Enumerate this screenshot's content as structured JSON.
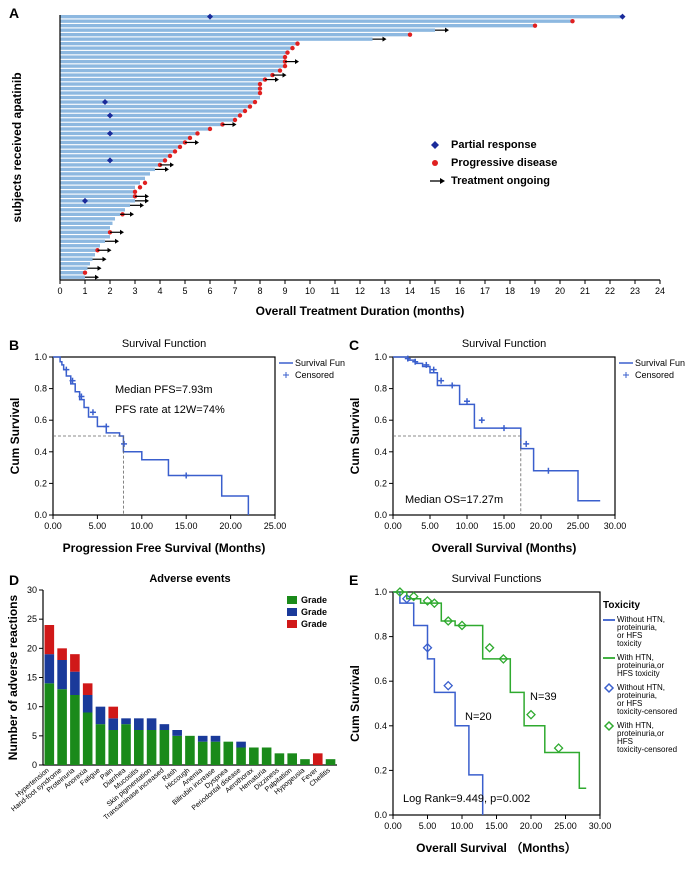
{
  "figure_width": 685,
  "figure_height": 879,
  "panelA": {
    "label": "A",
    "x_axis_title": "Overall Treatment Duration (months)",
    "y_axis_title": "subjects received apatinib",
    "xlim": [
      0,
      24
    ],
    "xtick_step": 1,
    "bar_color": "#8db8e0",
    "durations": [
      22.5,
      20.5,
      19,
      15,
      14,
      12.5,
      9.5,
      9.3,
      9.1,
      9,
      9,
      9,
      8.8,
      8.5,
      8.2,
      8,
      8,
      8,
      8,
      7.8,
      7.6,
      7.4,
      7.2,
      7,
      6.5,
      6,
      5.5,
      5.2,
      5,
      4.8,
      4.6,
      4.4,
      4.2,
      4,
      3.8,
      3.6,
      3.4,
      3.2,
      3,
      3,
      3,
      3,
      2.8,
      2.6,
      2.4,
      2.2,
      2.1,
      2,
      2,
      2,
      1.8,
      1.6,
      1.5,
      1.4,
      1.3,
      1.2,
      1.1,
      1,
      1
    ],
    "pr_points": [
      [
        22.5,
        0
      ],
      [
        6,
        0
      ],
      [
        1.8,
        19
      ],
      [
        2,
        22
      ],
      [
        2,
        26
      ],
      [
        2,
        32
      ],
      [
        1,
        41
      ]
    ],
    "pd_points": [
      [
        20.5,
        1
      ],
      [
        19,
        2
      ],
      [
        14,
        4
      ],
      [
        9.5,
        6
      ],
      [
        9.3,
        7
      ],
      [
        9.1,
        8
      ],
      [
        9,
        9
      ],
      [
        9,
        10
      ],
      [
        9,
        11
      ],
      [
        8.8,
        12
      ],
      [
        8.5,
        13
      ],
      [
        8.2,
        14
      ],
      [
        8,
        15
      ],
      [
        8,
        16
      ],
      [
        8,
        17
      ],
      [
        7.8,
        19
      ],
      [
        7.6,
        20
      ],
      [
        7.4,
        21
      ],
      [
        7.2,
        22
      ],
      [
        7,
        23
      ],
      [
        6.5,
        24
      ],
      [
        6,
        25
      ],
      [
        5.5,
        26
      ],
      [
        5.2,
        27
      ],
      [
        5,
        28
      ],
      [
        4.8,
        29
      ],
      [
        4.6,
        30
      ],
      [
        4.4,
        31
      ],
      [
        4.2,
        32
      ],
      [
        4,
        33
      ],
      [
        3.4,
        37
      ],
      [
        3.2,
        38
      ],
      [
        3,
        39
      ],
      [
        3,
        40
      ],
      [
        2.5,
        44
      ],
      [
        2,
        48
      ],
      [
        1.5,
        52
      ],
      [
        1,
        57
      ]
    ],
    "ongoing_points": [
      [
        15,
        3
      ],
      [
        12.5,
        5
      ],
      [
        9,
        10
      ],
      [
        8.5,
        13
      ],
      [
        8.2,
        14
      ],
      [
        6.5,
        24
      ],
      [
        5,
        28
      ],
      [
        4,
        33
      ],
      [
        3.8,
        34
      ],
      [
        3,
        40
      ],
      [
        3,
        41
      ],
      [
        2.8,
        42
      ],
      [
        2.4,
        44
      ],
      [
        2,
        48
      ],
      [
        1.8,
        50
      ],
      [
        1.5,
        52
      ],
      [
        1.3,
        54
      ],
      [
        1.1,
        56
      ],
      [
        1,
        58
      ]
    ],
    "legend": [
      {
        "marker": "diamond",
        "color": "#1a2b9a",
        "label": "Partial response"
      },
      {
        "marker": "circle",
        "color": "#e02020",
        "label": "Progressive disease"
      },
      {
        "marker": "arrow",
        "color": "#000000",
        "label": "Treatment ongoing"
      }
    ]
  },
  "panelB": {
    "label": "B",
    "title": "Survival Function",
    "x_axis_title": "Progression Free Survival (Months)",
    "y_axis_title": "Cum Survival",
    "xlim": [
      0,
      25
    ],
    "xtick_step": 5,
    "ylim": [
      0,
      1
    ],
    "ytick_step": 0.2,
    "annotation1": "Median PFS=7.93m",
    "annotation2": "PFS rate at 12W=74%",
    "median_x": 7.93,
    "line_color": "#3a5fcd",
    "legend": [
      "Survival Function",
      "Censored"
    ],
    "steps": [
      [
        0,
        1.0
      ],
      [
        0.8,
        1.0
      ],
      [
        0.8,
        0.97
      ],
      [
        1.0,
        0.97
      ],
      [
        1.0,
        0.95
      ],
      [
        1.2,
        0.95
      ],
      [
        1.2,
        0.92
      ],
      [
        1.5,
        0.92
      ],
      [
        1.5,
        0.88
      ],
      [
        2.0,
        0.88
      ],
      [
        2.0,
        0.83
      ],
      [
        2.5,
        0.83
      ],
      [
        2.5,
        0.78
      ],
      [
        3.0,
        0.78
      ],
      [
        3.0,
        0.73
      ],
      [
        3.5,
        0.73
      ],
      [
        3.5,
        0.68
      ],
      [
        4.0,
        0.68
      ],
      [
        4.0,
        0.62
      ],
      [
        5.0,
        0.62
      ],
      [
        5.0,
        0.56
      ],
      [
        6.0,
        0.56
      ],
      [
        6.0,
        0.52
      ],
      [
        7.5,
        0.52
      ],
      [
        7.5,
        0.5
      ],
      [
        7.93,
        0.5
      ],
      [
        7.93,
        0.4
      ],
      [
        10,
        0.4
      ],
      [
        10,
        0.35
      ],
      [
        13,
        0.35
      ],
      [
        13,
        0.25
      ],
      [
        19,
        0.25
      ],
      [
        19,
        0.12
      ],
      [
        22,
        0.12
      ],
      [
        22,
        0.0
      ]
    ],
    "censored": [
      [
        1.5,
        0.92
      ],
      [
        2.2,
        0.85
      ],
      [
        3.2,
        0.75
      ],
      [
        4.5,
        0.65
      ],
      [
        6,
        0.56
      ],
      [
        8,
        0.45
      ],
      [
        15,
        0.25
      ]
    ]
  },
  "panelC": {
    "label": "C",
    "title": "Survival Function",
    "x_axis_title": "Overall Survival (Months)",
    "y_axis_title": "Cum Survival",
    "xlim": [
      0,
      30
    ],
    "xtick_step": 5,
    "ylim": [
      0,
      1
    ],
    "ytick_step": 0.2,
    "annotation": "Median OS=17.27m",
    "median_x": 17.27,
    "line_color": "#3a5fcd",
    "legend": [
      "Survival Function",
      "Censored"
    ],
    "steps": [
      [
        0,
        1.0
      ],
      [
        2,
        1.0
      ],
      [
        2,
        0.98
      ],
      [
        3,
        0.98
      ],
      [
        3,
        0.96
      ],
      [
        4,
        0.96
      ],
      [
        4,
        0.94
      ],
      [
        5,
        0.94
      ],
      [
        5,
        0.9
      ],
      [
        6,
        0.9
      ],
      [
        6,
        0.82
      ],
      [
        9,
        0.82
      ],
      [
        9,
        0.7
      ],
      [
        11,
        0.7
      ],
      [
        11,
        0.55
      ],
      [
        17,
        0.55
      ],
      [
        17.27,
        0.55
      ],
      [
        17.27,
        0.42
      ],
      [
        19,
        0.42
      ],
      [
        19,
        0.28
      ],
      [
        25,
        0.28
      ],
      [
        25,
        0.09
      ],
      [
        28,
        0.09
      ]
    ],
    "censored": [
      [
        2,
        0.99
      ],
      [
        3,
        0.97
      ],
      [
        4.5,
        0.95
      ],
      [
        5.5,
        0.92
      ],
      [
        6.5,
        0.85
      ],
      [
        8,
        0.82
      ],
      [
        10,
        0.72
      ],
      [
        12,
        0.6
      ],
      [
        15,
        0.55
      ],
      [
        18,
        0.45
      ],
      [
        21,
        0.28
      ]
    ]
  },
  "panelD": {
    "label": "D",
    "title": "Adverse events",
    "x_axis_title": "",
    "y_axis_title": "Number of adverse reactions",
    "ylim": [
      0,
      30
    ],
    "ytick_step": 5,
    "legend": [
      "Grade",
      "Grade",
      "Grade"
    ],
    "colors": {
      "g1": "#1a8a1a",
      "g2": "#1a3a9a",
      "g3": "#d01818"
    },
    "categories": [
      "Hypertension",
      "Hand-foot syndrome",
      "Proteinuria",
      "Anorexia",
      "Fatigue",
      "Pain",
      "Diarrhea",
      "Mucositis",
      "Skin pigmentation",
      "Transaminase increased",
      "Rash",
      "Hiccough",
      "Anemia",
      "Bilirubin increase",
      "Dyspnea",
      "Periodontal disease",
      "Aerothorax",
      "Hematuria",
      "Dizziness",
      "Palpitation",
      "Hypogeusia",
      "Fever",
      "Cheilitis"
    ],
    "stacks": [
      [
        14,
        5,
        5
      ],
      [
        13,
        5,
        2
      ],
      [
        12,
        4,
        3
      ],
      [
        9,
        3,
        2
      ],
      [
        7,
        3,
        0
      ],
      [
        6,
        2,
        2
      ],
      [
        7,
        1,
        0
      ],
      [
        6,
        2,
        0
      ],
      [
        6,
        2,
        0
      ],
      [
        6,
        1,
        0
      ],
      [
        5,
        1,
        0
      ],
      [
        5,
        0,
        0
      ],
      [
        4,
        1,
        0
      ],
      [
        4,
        1,
        0
      ],
      [
        4,
        0,
        0
      ],
      [
        3,
        1,
        0
      ],
      [
        3,
        0,
        0
      ],
      [
        3,
        0,
        0
      ],
      [
        2,
        0,
        0
      ],
      [
        2,
        0,
        0
      ],
      [
        1,
        0,
        0
      ],
      [
        0,
        0,
        2
      ],
      [
        1,
        0,
        0
      ]
    ]
  },
  "panelE": {
    "label": "E",
    "title": "Survival Functions",
    "x_axis_title": "Overall Survival  （Months）",
    "y_axis_title": "Cum Survival",
    "xlim": [
      0,
      30
    ],
    "xtick_step": 5,
    "ylim": [
      0,
      1
    ],
    "ytick_step": 0.2,
    "annotation_n1": "N=20",
    "annotation_n2": "N=39",
    "annotation_lr": "Log Rank=9.449, p=0.002",
    "legend_title": "Toxicity",
    "colors": {
      "without": "#3a5fcd",
      "with": "#2faa2f"
    },
    "legend_items": [
      "Without HTN, proteinuria, or HFS toxicity",
      "With HTN, proteinuria,or HFS toxicity",
      "Without HTN, proteinuria, or HFS toxicity-censored",
      "With HTN, proteinuria,or HFS toxicity-censored"
    ],
    "without_steps": [
      [
        0,
        1.0
      ],
      [
        1,
        1.0
      ],
      [
        1,
        0.95
      ],
      [
        3,
        0.95
      ],
      [
        3,
        0.85
      ],
      [
        5,
        0.85
      ],
      [
        5,
        0.7
      ],
      [
        6,
        0.7
      ],
      [
        6,
        0.55
      ],
      [
        9,
        0.55
      ],
      [
        9,
        0.4
      ],
      [
        11,
        0.4
      ],
      [
        11,
        0.18
      ],
      [
        13,
        0.18
      ],
      [
        13,
        0.0
      ]
    ],
    "with_steps": [
      [
        0,
        1.0
      ],
      [
        2,
        1.0
      ],
      [
        2,
        0.97
      ],
      [
        4,
        0.97
      ],
      [
        4,
        0.95
      ],
      [
        7,
        0.95
      ],
      [
        7,
        0.87
      ],
      [
        9,
        0.87
      ],
      [
        9,
        0.85
      ],
      [
        13,
        0.85
      ],
      [
        13,
        0.7
      ],
      [
        17,
        0.7
      ],
      [
        17,
        0.55
      ],
      [
        19,
        0.55
      ],
      [
        19,
        0.4
      ],
      [
        22,
        0.4
      ],
      [
        22,
        0.28
      ],
      [
        27,
        0.28
      ],
      [
        27,
        0.12
      ],
      [
        28,
        0.12
      ]
    ],
    "without_cens": [
      [
        2,
        0.97
      ],
      [
        5,
        0.75
      ],
      [
        8,
        0.58
      ]
    ],
    "with_cens": [
      [
        1,
        1.0
      ],
      [
        3,
        0.98
      ],
      [
        5,
        0.96
      ],
      [
        6,
        0.95
      ],
      [
        8,
        0.87
      ],
      [
        10,
        0.85
      ],
      [
        14,
        0.75
      ],
      [
        16,
        0.7
      ],
      [
        20,
        0.45
      ],
      [
        24,
        0.3
      ]
    ]
  }
}
